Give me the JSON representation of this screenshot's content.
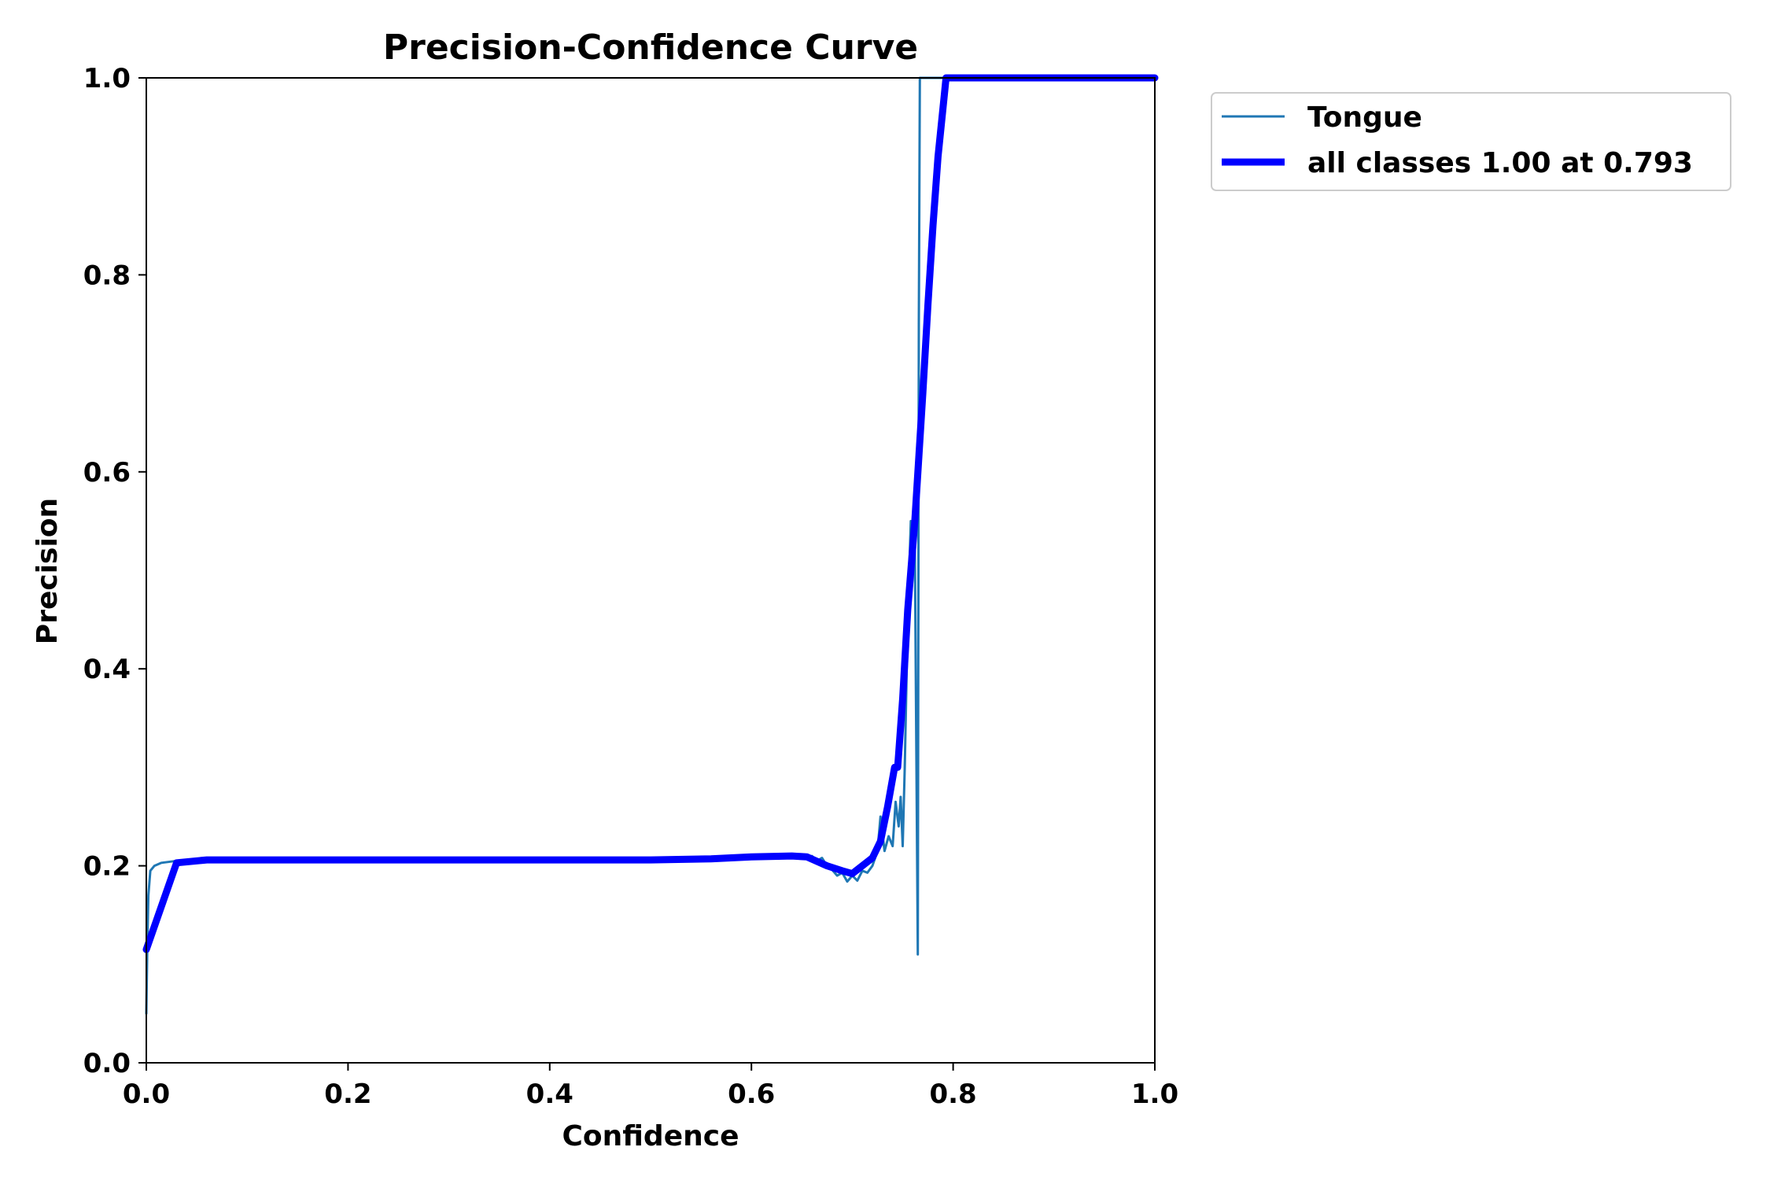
{
  "chart_data": {
    "type": "line",
    "title": "Precision-Confidence Curve",
    "xlabel": "Confidence",
    "ylabel": "Precision",
    "xlim": [
      0,
      1
    ],
    "ylim": [
      0,
      1
    ],
    "grid": false,
    "legend_position": "outside-top-right",
    "x_ticks": [
      "0.0",
      "0.2",
      "0.4",
      "0.6",
      "0.8",
      "1.0"
    ],
    "y_ticks": [
      "0.0",
      "0.2",
      "0.4",
      "0.6",
      "0.8",
      "1.0"
    ],
    "series": [
      {
        "name": "Tongue",
        "color": "#1f77b4",
        "points": [
          [
            0.0,
            0.05
          ],
          [
            0.001,
            0.12
          ],
          [
            0.002,
            0.17
          ],
          [
            0.004,
            0.195
          ],
          [
            0.008,
            0.2
          ],
          [
            0.015,
            0.203
          ],
          [
            0.03,
            0.205
          ],
          [
            0.1,
            0.206
          ],
          [
            0.3,
            0.206
          ],
          [
            0.5,
            0.206
          ],
          [
            0.56,
            0.207
          ],
          [
            0.6,
            0.209
          ],
          [
            0.64,
            0.21
          ],
          [
            0.655,
            0.208
          ],
          [
            0.66,
            0.21
          ],
          [
            0.665,
            0.205
          ],
          [
            0.67,
            0.208
          ],
          [
            0.675,
            0.2
          ],
          [
            0.68,
            0.196
          ],
          [
            0.685,
            0.19
          ],
          [
            0.69,
            0.193
          ],
          [
            0.695,
            0.184
          ],
          [
            0.7,
            0.19
          ],
          [
            0.705,
            0.185
          ],
          [
            0.71,
            0.195
          ],
          [
            0.715,
            0.193
          ],
          [
            0.72,
            0.2
          ],
          [
            0.725,
            0.215
          ],
          [
            0.728,
            0.25
          ],
          [
            0.732,
            0.215
          ],
          [
            0.736,
            0.23
          ],
          [
            0.74,
            0.22
          ],
          [
            0.743,
            0.265
          ],
          [
            0.746,
            0.24
          ],
          [
            0.748,
            0.27
          ],
          [
            0.75,
            0.22
          ],
          [
            0.752,
            0.3
          ],
          [
            0.755,
            0.45
          ],
          [
            0.758,
            0.55
          ],
          [
            0.762,
            0.53
          ],
          [
            0.765,
            0.11
          ],
          [
            0.766,
            0.75
          ],
          [
            0.767,
            1.0
          ],
          [
            0.8,
            1.0
          ],
          [
            1.0,
            1.0
          ]
        ]
      },
      {
        "name": "all classes 1.00 at 0.793",
        "color": "#0000ff",
        "points": [
          [
            0.0,
            0.115
          ],
          [
            0.03,
            0.203
          ],
          [
            0.06,
            0.206
          ],
          [
            0.3,
            0.206
          ],
          [
            0.5,
            0.206
          ],
          [
            0.56,
            0.207
          ],
          [
            0.6,
            0.209
          ],
          [
            0.64,
            0.21
          ],
          [
            0.655,
            0.209
          ],
          [
            0.675,
            0.2
          ],
          [
            0.69,
            0.195
          ],
          [
            0.7,
            0.192
          ],
          [
            0.71,
            0.2
          ],
          [
            0.72,
            0.208
          ],
          [
            0.728,
            0.225
          ],
          [
            0.735,
            0.26
          ],
          [
            0.742,
            0.3
          ],
          [
            0.745,
            0.3
          ],
          [
            0.75,
            0.37
          ],
          [
            0.755,
            0.46
          ],
          [
            0.762,
            0.55
          ],
          [
            0.77,
            0.68
          ],
          [
            0.775,
            0.77
          ],
          [
            0.78,
            0.85
          ],
          [
            0.785,
            0.92
          ],
          [
            0.79,
            0.97
          ],
          [
            0.793,
            1.0
          ],
          [
            0.8,
            1.0
          ],
          [
            1.0,
            1.0
          ]
        ]
      }
    ]
  }
}
